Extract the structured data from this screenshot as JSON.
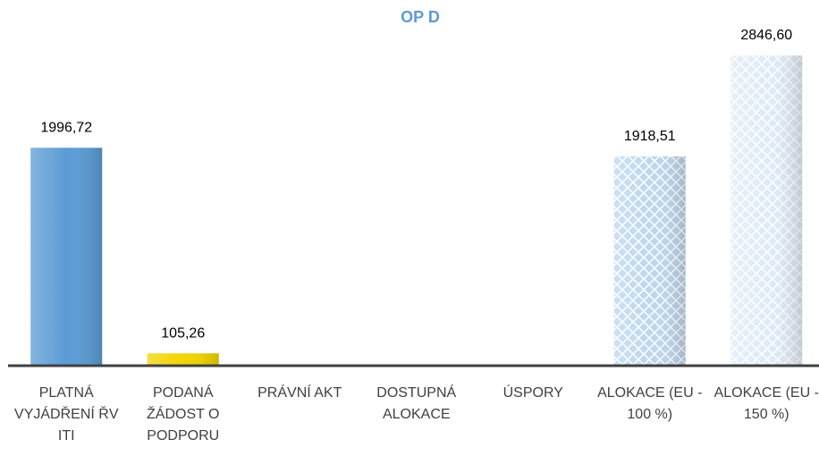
{
  "chart_data": {
    "type": "bar",
    "title": "OP D",
    "categories": [
      "PLATNÁ VYJÁDŘENÍ ŘV ITI",
      "PODANÁ ŽÁDOST O PODPORU",
      "PRÁVNÍ AKT",
      "DOSTUPNÁ ALOKACE",
      "ÚSPORY",
      "ALOKACE (EU - 100 %)",
      "ALOKACE (EU - 150 %)"
    ],
    "values": [
      1996.72,
      105.26,
      null,
      null,
      null,
      1918.51,
      2846.6
    ],
    "value_labels": [
      "1996,72",
      "105,26",
      null,
      null,
      null,
      "1918,51",
      "2846,60"
    ],
    "colors": [
      "#5b9bd5",
      "#f2d400",
      null,
      null,
      null,
      "#bdd7ee",
      "#deebf7"
    ],
    "hatched": [
      false,
      false,
      false,
      false,
      false,
      true,
      true
    ]
  }
}
